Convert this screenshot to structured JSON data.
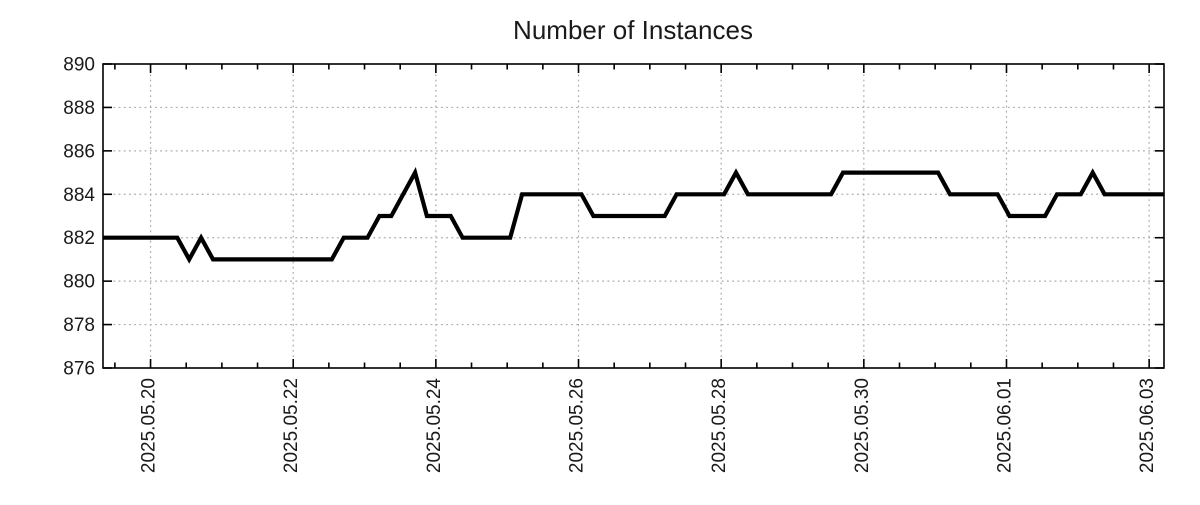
{
  "style": {
    "background": "#ffffff",
    "line_color": "#000000",
    "grid_color": "#ababab",
    "axis_color": "#000000",
    "text_color": "#1a1a1a"
  },
  "chart_data": {
    "type": "line",
    "title": "Number of Instances",
    "x_type": "time",
    "x_min": "2025-05-19 08:00",
    "x_max": "2025-06-03 05:00",
    "x_major_ticks": [
      {
        "t": "2025-05-20 00:00",
        "label": "2025.05.20"
      },
      {
        "t": "2025-05-22 00:00",
        "label": "2025.05.22"
      },
      {
        "t": "2025-05-24 00:00",
        "label": "2025.05.24"
      },
      {
        "t": "2025-05-26 00:00",
        "label": "2025.05.26"
      },
      {
        "t": "2025-05-28 00:00",
        "label": "2025.05.28"
      },
      {
        "t": "2025-05-30 00:00",
        "label": "2025.05.30"
      },
      {
        "t": "2025-06-01 00:00",
        "label": "2025.06.01"
      },
      {
        "t": "2025-06-03 00:00",
        "label": "2025.06.03"
      }
    ],
    "x_minor_tick_hours": 12,
    "ylim": [
      876,
      890
    ],
    "y_ticks": [
      876,
      878,
      880,
      882,
      884,
      886,
      888,
      890
    ],
    "y_grid_values": [
      878,
      880,
      882,
      884,
      886,
      888
    ],
    "grid": true,
    "legend": null,
    "series": [
      {
        "color": "#000000",
        "points": [
          [
            "2025-05-19 08:00",
            882
          ],
          [
            "2025-05-20 09:00",
            882
          ],
          [
            "2025-05-20 13:00",
            881
          ],
          [
            "2025-05-20 17:00",
            882
          ],
          [
            "2025-05-20 21:00",
            881
          ],
          [
            "2025-05-22 13:00",
            881
          ],
          [
            "2025-05-22 17:00",
            882
          ],
          [
            "2025-05-23 01:00",
            882
          ],
          [
            "2025-05-23 05:00",
            883
          ],
          [
            "2025-05-23 09:00",
            883
          ],
          [
            "2025-05-23 13:00",
            884
          ],
          [
            "2025-05-23 17:00",
            885
          ],
          [
            "2025-05-23 21:00",
            883
          ],
          [
            "2025-05-24 05:00",
            883
          ],
          [
            "2025-05-24 09:00",
            882
          ],
          [
            "2025-05-25 01:00",
            882
          ],
          [
            "2025-05-25 05:00",
            884
          ],
          [
            "2025-05-26 01:00",
            884
          ],
          [
            "2025-05-26 05:00",
            883
          ],
          [
            "2025-05-27 05:00",
            883
          ],
          [
            "2025-05-27 09:00",
            884
          ],
          [
            "2025-05-28 01:00",
            884
          ],
          [
            "2025-05-28 05:00",
            885
          ],
          [
            "2025-05-28 09:00",
            884
          ],
          [
            "2025-05-29 13:00",
            884
          ],
          [
            "2025-05-29 17:00",
            885
          ],
          [
            "2025-05-31 01:00",
            885
          ],
          [
            "2025-05-31 05:00",
            884
          ],
          [
            "2025-05-31 21:00",
            884
          ],
          [
            "2025-06-01 01:00",
            883
          ],
          [
            "2025-06-01 13:00",
            883
          ],
          [
            "2025-06-01 17:00",
            884
          ],
          [
            "2025-06-02 01:00",
            884
          ],
          [
            "2025-06-02 05:00",
            885
          ],
          [
            "2025-06-02 09:00",
            884
          ],
          [
            "2025-06-03 05:00",
            884
          ]
        ]
      }
    ]
  }
}
